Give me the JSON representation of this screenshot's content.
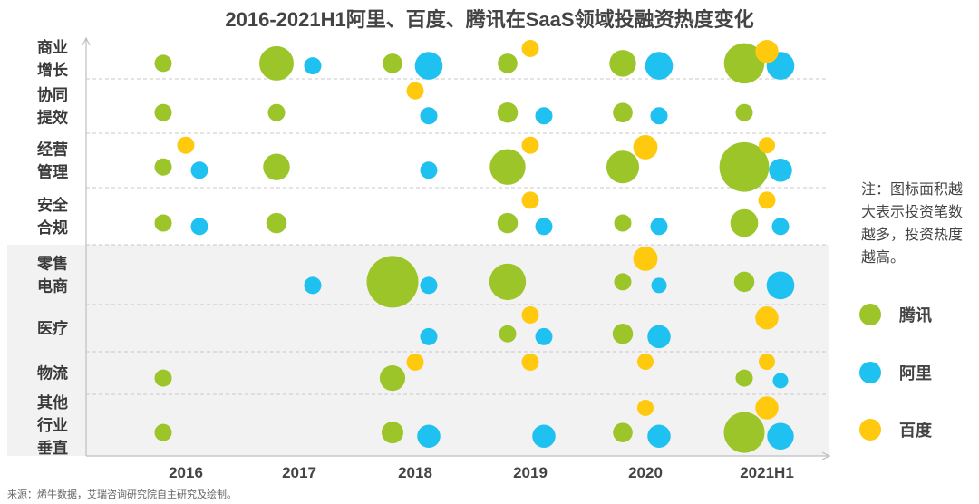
{
  "chart_data": {
    "type": "scatter",
    "title": "2016-2021H1阿里、百度、腾讯在SaaS领域投融资热度变化",
    "x_categories": [
      "2016",
      "2017",
      "2018",
      "2019",
      "2020",
      "2021H1"
    ],
    "y_categories": [
      {
        "name": "商业增长",
        "lines": [
          "商业",
          "增长"
        ]
      },
      {
        "name": "协同提效",
        "lines": [
          "协同",
          "提效"
        ]
      },
      {
        "name": "经营管理",
        "lines": [
          "经营",
          "管理"
        ]
      },
      {
        "name": "安全合规",
        "lines": [
          "安全",
          "合规"
        ]
      },
      {
        "name": "零售电商",
        "lines": [
          "零售",
          "电商"
        ]
      },
      {
        "name": "医疗",
        "lines": [
          "医疗"
        ]
      },
      {
        "name": "物流",
        "lines": [
          "物流"
        ]
      },
      {
        "name": "其他行业垂直",
        "lines": [
          "其他",
          "行业",
          "垂直"
        ]
      }
    ],
    "size_meaning": "bubble area = investment heat (relative, 1-9 scale)",
    "series": [
      {
        "name": "腾讯",
        "color": "#9CC52A",
        "points": [
          {
            "x": "2016",
            "y": "商业增长",
            "size": 1
          },
          {
            "x": "2017",
            "y": "商业增长",
            "size": 4
          },
          {
            "x": "2018",
            "y": "商业增长",
            "size": 1.3
          },
          {
            "x": "2019",
            "y": "商业增长",
            "size": 1.3
          },
          {
            "x": "2020",
            "y": "商业增长",
            "size": 2.4
          },
          {
            "x": "2021H1",
            "y": "商业增长",
            "size": 5.5
          },
          {
            "x": "2016",
            "y": "协同提效",
            "size": 1
          },
          {
            "x": "2017",
            "y": "协同提效",
            "size": 1
          },
          {
            "x": "2019",
            "y": "协同提效",
            "size": 1.4
          },
          {
            "x": "2020",
            "y": "协同提效",
            "size": 1.3
          },
          {
            "x": "2021H1",
            "y": "协同提效",
            "size": 1
          },
          {
            "x": "2016",
            "y": "经营管理",
            "size": 1
          },
          {
            "x": "2017",
            "y": "经营管理",
            "size": 2.4
          },
          {
            "x": "2019",
            "y": "经营管理",
            "size": 4.3
          },
          {
            "x": "2020",
            "y": "经营管理",
            "size": 3.6
          },
          {
            "x": "2021H1",
            "y": "经营管理",
            "size": 8.3
          },
          {
            "x": "2016",
            "y": "安全合规",
            "size": 1
          },
          {
            "x": "2017",
            "y": "安全合规",
            "size": 1.4
          },
          {
            "x": "2019",
            "y": "安全合规",
            "size": 1.4
          },
          {
            "x": "2020",
            "y": "安全合规",
            "size": 1
          },
          {
            "x": "2021H1",
            "y": "安全合规",
            "size": 2.6
          },
          {
            "x": "2018",
            "y": "零售电商",
            "size": 9
          },
          {
            "x": "2019",
            "y": "零售电商",
            "size": 4.5
          },
          {
            "x": "2020",
            "y": "零售电商",
            "size": 1
          },
          {
            "x": "2021H1",
            "y": "零售电商",
            "size": 1.4
          },
          {
            "x": "2019",
            "y": "医疗",
            "size": 1
          },
          {
            "x": "2020",
            "y": "医疗",
            "size": 1.4
          },
          {
            "x": "2016",
            "y": "物流",
            "size": 1
          },
          {
            "x": "2018",
            "y": "物流",
            "size": 2.2
          },
          {
            "x": "2021H1",
            "y": "物流",
            "size": 1
          },
          {
            "x": "2016",
            "y": "其他行业垂直",
            "size": 1
          },
          {
            "x": "2018",
            "y": "其他行业垂直",
            "size": 1.6
          },
          {
            "x": "2020",
            "y": "其他行业垂直",
            "size": 1.3
          },
          {
            "x": "2021H1",
            "y": "其他行业垂直",
            "size": 5.6
          }
        ]
      },
      {
        "name": "阿里",
        "color": "#1EC1F0",
        "points": [
          {
            "x": "2017",
            "y": "商业增长",
            "size": 1
          },
          {
            "x": "2018",
            "y": "商业增长",
            "size": 2.6
          },
          {
            "x": "2020",
            "y": "商业增长",
            "size": 2.6
          },
          {
            "x": "2021H1",
            "y": "商业增长",
            "size": 2.6
          },
          {
            "x": "2018",
            "y": "协同提效",
            "size": 1
          },
          {
            "x": "2019",
            "y": "协同提效",
            "size": 1
          },
          {
            "x": "2020",
            "y": "协同提效",
            "size": 1
          },
          {
            "x": "2016",
            "y": "经营管理",
            "size": 1
          },
          {
            "x": "2018",
            "y": "经营管理",
            "size": 1
          },
          {
            "x": "2021H1",
            "y": "经营管理",
            "size": 1.8
          },
          {
            "x": "2016",
            "y": "安全合规",
            "size": 1
          },
          {
            "x": "2020",
            "y": "安全合规",
            "size": 1
          },
          {
            "x": "2021H1",
            "y": "安全合规",
            "size": 1
          },
          {
            "x": "2019",
            "y": "安全合规",
            "size": 1
          },
          {
            "x": "2017",
            "y": "零售电商",
            "size": 1
          },
          {
            "x": "2018",
            "y": "零售电商",
            "size": 1
          },
          {
            "x": "2020",
            "y": "零售电商",
            "size": 0.8
          },
          {
            "x": "2021H1",
            "y": "零售电商",
            "size": 2.6
          },
          {
            "x": "2018",
            "y": "医疗",
            "size": 1
          },
          {
            "x": "2019",
            "y": "医疗",
            "size": 1
          },
          {
            "x": "2020",
            "y": "医疗",
            "size": 1.8
          },
          {
            "x": "2021H1",
            "y": "物流",
            "size": 0.8
          },
          {
            "x": "2018",
            "y": "其他行业垂直",
            "size": 1.8
          },
          {
            "x": "2019",
            "y": "其他行业垂直",
            "size": 1.8
          },
          {
            "x": "2020",
            "y": "其他行业垂直",
            "size": 1.8
          },
          {
            "x": "2021H1",
            "y": "其他行业垂直",
            "size": 2.4
          }
        ]
      },
      {
        "name": "百度",
        "color": "#FFC90E",
        "points": [
          {
            "x": "2019",
            "y": "商业增长",
            "size": 1
          },
          {
            "x": "2021H1",
            "y": "商业增长",
            "size": 1.8
          },
          {
            "x": "2018",
            "y": "协同提效",
            "size": 1
          },
          {
            "x": "2016",
            "y": "经营管理",
            "size": 1
          },
          {
            "x": "2019",
            "y": "经营管理",
            "size": 1
          },
          {
            "x": "2020",
            "y": "经营管理",
            "size": 2
          },
          {
            "x": "2021H1",
            "y": "经营管理",
            "size": 0.9
          },
          {
            "x": "2019",
            "y": "安全合规",
            "size": 1
          },
          {
            "x": "2021H1",
            "y": "安全合规",
            "size": 1
          },
          {
            "x": "2020",
            "y": "零售电商",
            "size": 2
          },
          {
            "x": "2019",
            "y": "医疗",
            "size": 1
          },
          {
            "x": "2021H1",
            "y": "医疗",
            "size": 1.8
          },
          {
            "x": "2018",
            "y": "物流",
            "size": 1
          },
          {
            "x": "2019",
            "y": "物流",
            "size": 1
          },
          {
            "x": "2020",
            "y": "物流",
            "size": 0.9
          },
          {
            "x": "2021H1",
            "y": "物流",
            "size": 0.9
          },
          {
            "x": "2020",
            "y": "其他行业垂直",
            "size": 0.9
          },
          {
            "x": "2021H1",
            "y": "其他行业垂直",
            "size": 1.8
          }
        ]
      }
    ],
    "legend_position": "right",
    "grid": "dashed horizontal lines between categories"
  },
  "note": "注：图标面积越大表示投资笔数越多，投资热度越高。",
  "source": "来源：烯牛数据，艾瑞咨询研究院自主研究及绘制。"
}
